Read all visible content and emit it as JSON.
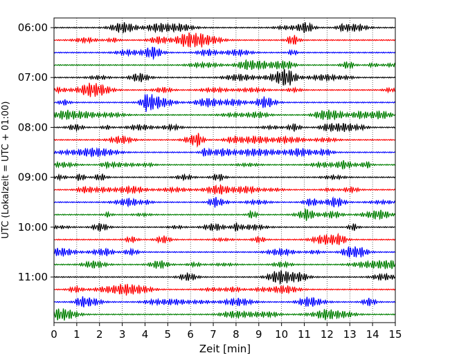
{
  "chart_data": {
    "type": "line",
    "chart_style": "helicorder seismogram",
    "xlabel": "Zeit  [min]",
    "ylabel": "UTC (Lokalzeit = UTC + 01:00)",
    "xlim": [
      0,
      15
    ],
    "x_ticks": [
      "0",
      "1",
      "2",
      "3",
      "4",
      "5",
      "6",
      "7",
      "8",
      "9",
      "10",
      "11",
      "12",
      "13",
      "14",
      "15"
    ],
    "y_tick_labels": [
      "06:00",
      "07:00",
      "08:00",
      "09:00",
      "10:00",
      "11:00"
    ],
    "trace_start_times": [
      "06:00",
      "06:15",
      "06:30",
      "06:45",
      "07:00",
      "07:15",
      "07:30",
      "07:45",
      "08:00",
      "08:15",
      "08:30",
      "08:45",
      "09:00",
      "09:15",
      "09:30",
      "09:45",
      "10:00",
      "10:15",
      "10:30",
      "10:45",
      "11:00",
      "11:15",
      "11:30",
      "11:45"
    ],
    "trace_minutes": 15,
    "trace_color_cycle": [
      "#000000",
      "#ff0000",
      "#0000ff",
      "#007f00"
    ],
    "grid": "vertical dotted at each minute",
    "legend": "none"
  }
}
